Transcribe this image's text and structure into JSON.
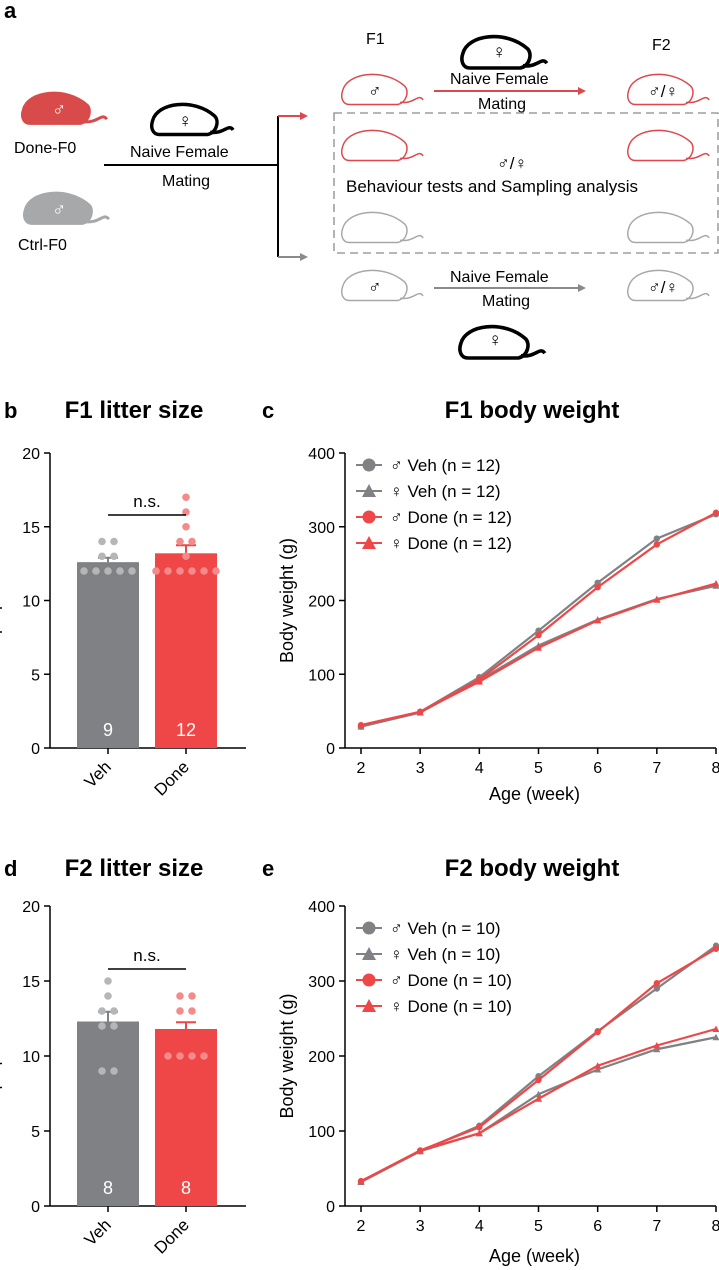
{
  "colors": {
    "veh": "#808184",
    "done": "#EF4747",
    "veh_light": "#B5B6B8",
    "done_light": "#F58A8A",
    "axis": "#000000",
    "dashed": "#8A8A8A"
  },
  "schematic": {
    "panel_letter": "a",
    "f0_done_label": "Done-F0",
    "f0_ctrl_label": "Ctrl-F0",
    "male_symbol": "♂",
    "female_symbol": "♀",
    "naive_female": "Naive Female",
    "mating": "Mating",
    "f1_label": "F1",
    "f2_label": "F2",
    "mixed_symbol": "♂/♀",
    "box_text": "Behaviour tests and Sampling analysis"
  },
  "chart_data": [
    {
      "panel": "b",
      "type": "bar",
      "title": "F1 litter size",
      "xlabel": "",
      "ylabel": "Pups per litter",
      "ylim": [
        0,
        20
      ],
      "yticks": [
        0,
        5,
        10,
        15,
        20
      ],
      "categories": [
        "Veh",
        "Done"
      ],
      "values": [
        12.6,
        13.2
      ],
      "sem": [
        0.3,
        0.55
      ],
      "n_labels": [
        "9",
        "12"
      ],
      "points": [
        [
          12,
          12,
          12,
          12,
          12,
          13,
          13,
          14,
          14
        ],
        [
          12,
          12,
          12,
          12,
          12,
          12,
          13,
          14,
          14,
          15,
          16,
          17
        ]
      ],
      "significance": "n.s."
    },
    {
      "panel": "c",
      "type": "line",
      "title": "F1 body weight",
      "xlabel": "Age (week)",
      "ylabel": "Body weight (g)",
      "ylim": [
        0,
        400
      ],
      "yticks": [
        0,
        100,
        200,
        300,
        400
      ],
      "x": [
        2,
        3,
        4,
        5,
        6,
        7,
        8
      ],
      "series": [
        {
          "name": "♂ Veh (n = 12)",
          "color": "veh",
          "marker": "circle",
          "values": [
            29,
            49,
            96,
            159,
            224,
            284,
            317
          ]
        },
        {
          "name": "♀ Veh (n = 12)",
          "color": "veh",
          "marker": "triangle",
          "values": [
            29,
            48,
            92,
            139,
            174,
            202,
            220
          ]
        },
        {
          "name": "♂ Done (n = 12)",
          "color": "done",
          "marker": "circle",
          "values": [
            31,
            49,
            93,
            153,
            218,
            276,
            319
          ]
        },
        {
          "name": "♀ Done (n = 12)",
          "color": "done",
          "marker": "triangle",
          "values": [
            31,
            49,
            90,
            136,
            173,
            201,
            223
          ]
        }
      ]
    },
    {
      "panel": "d",
      "type": "bar",
      "title": "F2 litter size",
      "xlabel": "",
      "ylabel": "Pups per litter",
      "ylim": [
        0,
        20
      ],
      "yticks": [
        0,
        5,
        10,
        15,
        20
      ],
      "categories": [
        "Veh",
        "Done"
      ],
      "values": [
        12.3,
        11.8
      ],
      "sem": [
        0.65,
        0.45
      ],
      "n_labels": [
        "8",
        "8"
      ],
      "points": [
        [
          9,
          9,
          12,
          12,
          13,
          13,
          14,
          15
        ],
        [
          10,
          10,
          10,
          10,
          13,
          13,
          14,
          14
        ]
      ],
      "significance": "n.s."
    },
    {
      "panel": "e",
      "type": "line",
      "title": "F2 body weight",
      "xlabel": "Age (week)",
      "ylabel": "Body weight (g)",
      "ylim": [
        0,
        400
      ],
      "yticks": [
        0,
        100,
        200,
        300,
        400
      ],
      "x": [
        2,
        3,
        4,
        5,
        6,
        7,
        8
      ],
      "series": [
        {
          "name": "♂ Veh (n = 10)",
          "color": "veh",
          "marker": "circle",
          "values": [
            33,
            73,
            107,
            173,
            233,
            290,
            347
          ]
        },
        {
          "name": "♀ Veh (n = 10)",
          "color": "veh",
          "marker": "triangle",
          "values": [
            32,
            73,
            97,
            149,
            182,
            209,
            225
          ]
        },
        {
          "name": "♂ Done (n = 10)",
          "color": "done",
          "marker": "circle",
          "values": [
            33,
            74,
            105,
            168,
            232,
            297,
            343
          ]
        },
        {
          "name": "♀ Done (n = 10)",
          "color": "done",
          "marker": "triangle",
          "values": [
            33,
            74,
            97,
            143,
            187,
            214,
            236
          ]
        }
      ]
    }
  ]
}
